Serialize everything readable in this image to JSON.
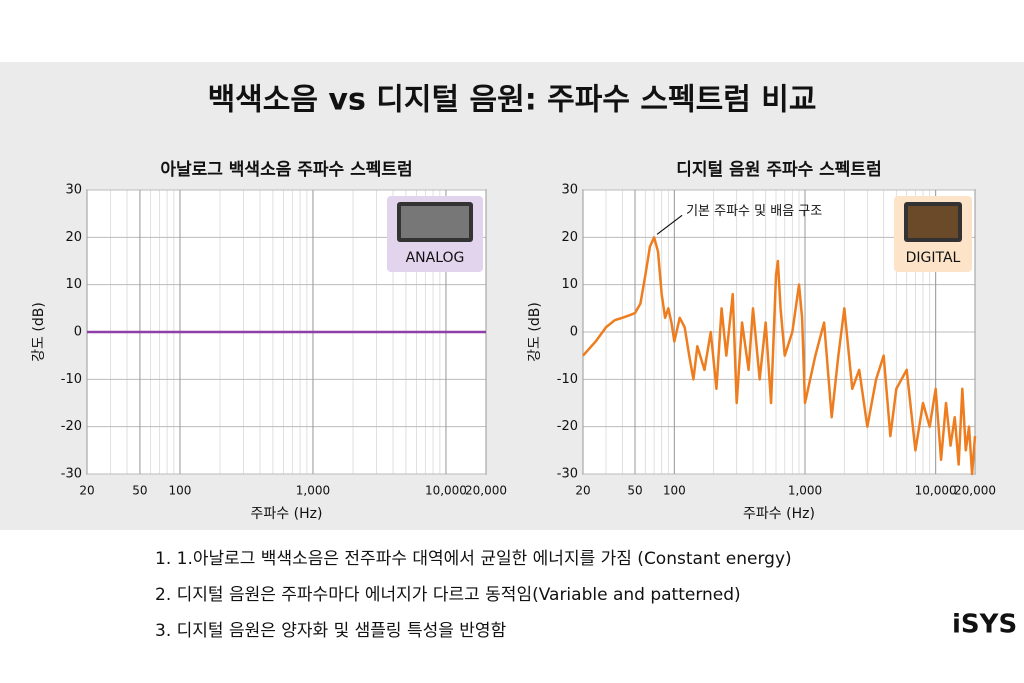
{
  "title": "백색소음 vs 디지털 음원: 주파수 스펙트럼 비교",
  "chart_data": [
    {
      "type": "line",
      "title": "아날로그 백색소음 주파수 스펙트럼",
      "xlabel": "주파수 (Hz)",
      "ylabel": "강도 (dB)",
      "xscale": "log",
      "xlim": [
        20,
        20000
      ],
      "ylim": [
        -30,
        30
      ],
      "xticks": [
        20,
        50,
        100,
        {
          "value": 1000,
          "label": "1,000"
        },
        {
          "value": 10000,
          "label": "10,000"
        },
        {
          "value": 20000,
          "label": "20,000"
        }
      ],
      "yticks": [
        -30,
        -20,
        -10,
        0,
        10,
        20,
        30
      ],
      "grid": true,
      "badge": "ANALOG",
      "series": [
        {
          "color": "#8e3fa8",
          "x": [
            20,
            20000
          ],
          "values": [
            0,
            0
          ]
        }
      ]
    },
    {
      "type": "line",
      "title": "디지털 음원 주파수 스펙트럼",
      "xlabel": "주파수 (Hz)",
      "ylabel": "강도 (dB)",
      "xscale": "log",
      "xlim": [
        20,
        20000
      ],
      "ylim": [
        -30,
        30
      ],
      "xticks": [
        20,
        50,
        100,
        {
          "value": 1000,
          "label": "1,000"
        },
        {
          "value": 10000,
          "label": "10,000"
        },
        {
          "value": 20000,
          "label": "20,000"
        }
      ],
      "yticks": [
        -30,
        -20,
        -10,
        0,
        10,
        20,
        30
      ],
      "grid": true,
      "badge": "DIGITAL",
      "annotation": {
        "text": "기본 주파수 및 배음 구조",
        "x": 70,
        "y": 20
      },
      "series": [
        {
          "color": "#ee7d1f",
          "x": [
            20,
            25,
            30,
            35,
            40,
            45,
            50,
            55,
            60,
            65,
            70,
            75,
            80,
            85,
            90,
            95,
            100,
            110,
            120,
            130,
            140,
            150,
            170,
            190,
            210,
            230,
            250,
            280,
            300,
            330,
            370,
            400,
            450,
            500,
            550,
            600,
            620,
            650,
            700,
            800,
            900,
            950,
            1000,
            1200,
            1400,
            1600,
            1800,
            2000,
            2300,
            2600,
            3000,
            3500,
            4000,
            4500,
            5000,
            6000,
            7000,
            8000,
            9000,
            10000,
            11000,
            12000,
            13000,
            14000,
            15000,
            16000,
            17000,
            18000,
            19000,
            20000
          ],
          "values": [
            -5,
            -2,
            1,
            2.5,
            3,
            3.5,
            4,
            6,
            12,
            18,
            20,
            17,
            8,
            3,
            5,
            2,
            -2,
            3,
            1,
            -5,
            -10,
            -3,
            -8,
            0,
            -12,
            5,
            -5,
            8,
            -15,
            2,
            -8,
            5,
            -10,
            2,
            -15,
            12,
            15,
            5,
            -5,
            0,
            10,
            3,
            -15,
            -5,
            2,
            -18,
            -5,
            5,
            -12,
            -8,
            -20,
            -10,
            -5,
            -22,
            -12,
            -8,
            -25,
            -15,
            -20,
            -12,
            -27,
            -15,
            -24,
            -18,
            -28,
            -12,
            -25,
            -20,
            -30,
            -22
          ]
        }
      ]
    }
  ],
  "notes": [
    "1. 1.아날로그 백색소음은 전주파수 대역에서 균일한 에너지를 가짐 (Constant energy)",
    "2. 디지털 음원은 주파수마다 에너지가 다르고 동적임(Variable and patterned)",
    "3. 디지털 음원은 양자화 및 샘플링 특성을 반영함"
  ],
  "logo": "iSYS"
}
